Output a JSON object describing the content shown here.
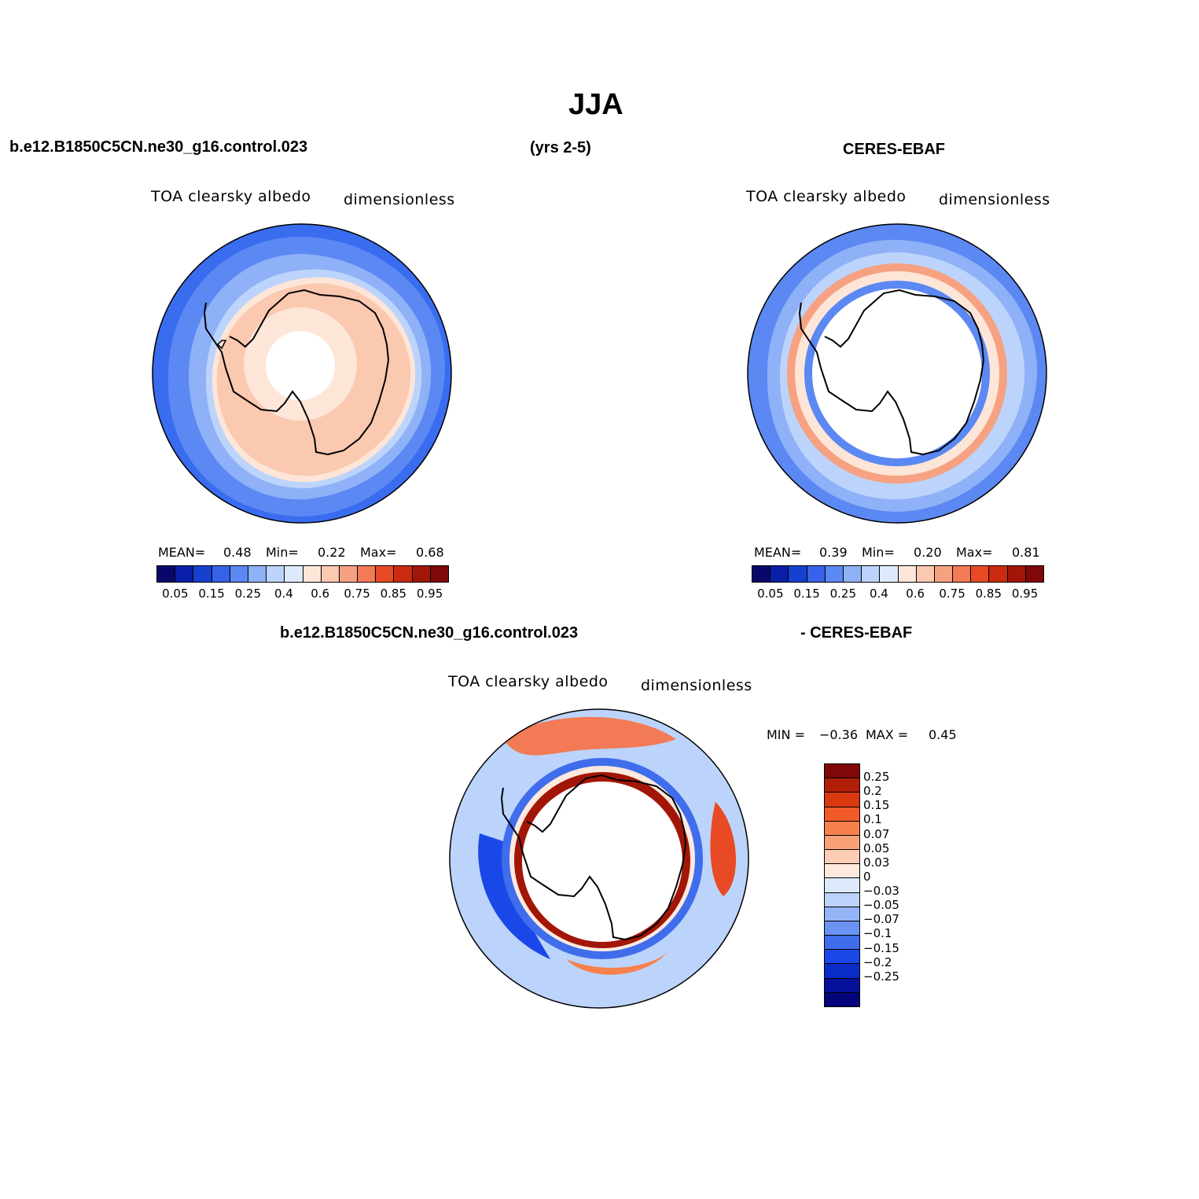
{
  "title": "JJA",
  "header": {
    "model_name": "b.e12.B1850C5CN.ne30_g16.control.023",
    "years": "(yrs 2-5)",
    "obs_name": "CERES-EBAF"
  },
  "diff_header": {
    "model_name": "b.e12.B1850C5CN.ne30_g16.control.023",
    "obs_name": "- CERES-EBAF"
  },
  "colors": {
    "abs_scale": [
      "#08086b",
      "#0a1fa8",
      "#1640d0",
      "#3562e8",
      "#5b88f2",
      "#8eb1f7",
      "#bcd4fb",
      "#ddeafd",
      "#fde6d8",
      "#fbc8b0",
      "#f6a282",
      "#f27a55",
      "#e84a25",
      "#cc2a10",
      "#a21607",
      "#800808"
    ],
    "diff_scale": [
      "#800808",
      "#b01e08",
      "#da3810",
      "#f05a28",
      "#f7804c",
      "#f9a278",
      "#fcccb4",
      "#fde9de",
      "#ddeafd",
      "#bcd4fb",
      "#93b4f7",
      "#6a93f2",
      "#3f6dec",
      "#1a48e8",
      "#0a2cc8",
      "#06109a",
      "#04047a"
    ]
  },
  "panels": [
    {
      "id": "model",
      "variable": "TOA clearsky albedo",
      "units": "dimensionless",
      "mean_label": "MEAN=",
      "mean": "0.48",
      "min_label": "Min=",
      "min": "0.22",
      "max_label": "Max=",
      "max": "0.68",
      "ticks": [
        "0.05",
        "0.15",
        "0.25",
        "0.4",
        "0.6",
        "0.75",
        "0.85",
        "0.95"
      ]
    },
    {
      "id": "obs",
      "variable": "TOA clearsky albedo",
      "units": "dimensionless",
      "mean_label": "MEAN=",
      "mean": "0.39",
      "min_label": "Min=",
      "min": "0.20",
      "max_label": "Max=",
      "max": "0.81",
      "ticks": [
        "0.05",
        "0.15",
        "0.25",
        "0.4",
        "0.6",
        "0.75",
        "0.85",
        "0.95"
      ]
    },
    {
      "id": "diff",
      "variable": "TOA clearsky albedo",
      "units": "dimensionless",
      "min_label": "MIN =",
      "min": "−0.36",
      "max_label": "MAX =",
      "max": "0.45",
      "ticks": [
        "0.25",
        "0.2",
        "0.15",
        "0.1",
        "0.07",
        "0.05",
        "0.03",
        "0",
        "−0.03",
        "−0.05",
        "−0.07",
        "−0.1",
        "−0.15",
        "−0.2",
        "−0.25"
      ]
    }
  ]
}
